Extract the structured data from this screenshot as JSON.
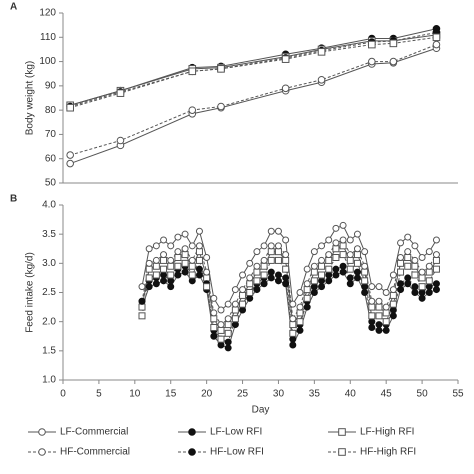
{
  "chart_data": [
    {
      "type": "line",
      "panel_label": "A",
      "y_label": "Body weight (kg)",
      "x": [
        1,
        8,
        18,
        22,
        31,
        36,
        43,
        46,
        52
      ],
      "xlim": [
        0,
        55
      ],
      "ylim": [
        50,
        120
      ],
      "yticks": [
        50,
        60,
        70,
        80,
        90,
        100,
        110,
        120
      ],
      "series": [
        {
          "name": "LF-Commercial",
          "color": "#555555",
          "marker": "circle-open",
          "dashed": false,
          "values": [
            58,
            65.5,
            78.5,
            81,
            88,
            91.5,
            99,
            99.5,
            105.5
          ]
        },
        {
          "name": "LF-Low RFI",
          "color": "#555555",
          "marker": "circle-filled",
          "dashed": false,
          "values": [
            82,
            88,
            97.5,
            98,
            103,
            105.5,
            109.5,
            109.5,
            113.5
          ]
        },
        {
          "name": "LF-High RFI",
          "color": "#555555",
          "marker": "square-open",
          "dashed": false,
          "values": [
            82,
            88,
            97,
            97.5,
            102,
            105,
            108.5,
            108.5,
            111
          ]
        },
        {
          "name": "HF-Commercial",
          "color": "#555555",
          "marker": "circle-open",
          "dashed": true,
          "values": [
            61.5,
            67.5,
            80,
            81.5,
            89,
            92.5,
            100,
            100,
            107
          ]
        },
        {
          "name": "HF-Low RFI",
          "color": "#555555",
          "marker": "circle-filled",
          "dashed": true,
          "values": [
            81.5,
            87.5,
            96,
            97,
            101.5,
            104.5,
            108,
            108.5,
            112
          ]
        },
        {
          "name": "HF-High RFI",
          "color": "#555555",
          "marker": "square-open",
          "dashed": true,
          "values": [
            81,
            87,
            96,
            97,
            101,
            104,
            107,
            107.5,
            110
          ]
        }
      ]
    },
    {
      "type": "line",
      "panel_label": "B",
      "y_label": "Feed intake (kg/d)",
      "x_label": "Day",
      "x": [
        11,
        12,
        13,
        14,
        15,
        16,
        17,
        18,
        19,
        20,
        21,
        22,
        23,
        24,
        25,
        26,
        27,
        28,
        29,
        30,
        31,
        32,
        33,
        34,
        35,
        36,
        37,
        38,
        39,
        40,
        41,
        42,
        43,
        44,
        45,
        46,
        47,
        48,
        49,
        50,
        51,
        52
      ],
      "xlim": [
        0,
        55
      ],
      "xticks": [
        0,
        5,
        10,
        15,
        20,
        25,
        30,
        35,
        40,
        45,
        50,
        55
      ],
      "ylim": [
        1,
        4
      ],
      "yticks": [
        {
          "value": 1,
          "label": "1.0"
        },
        1.5,
        {
          "value": 2,
          "label": "2.0"
        },
        2.5,
        {
          "value": 3,
          "label": "3.0"
        },
        3.5,
        {
          "value": 4,
          "label": "4.0"
        }
      ],
      "series": [
        {
          "color": "#555555",
          "marker": "circle-open",
          "dashed": false,
          "values": [
            2.6,
            3.25,
            3.3,
            3.4,
            3.3,
            3.45,
            3.5,
            3.3,
            3.55,
            3.1,
            2.4,
            2.2,
            2.3,
            2.55,
            2.8,
            3.0,
            3.2,
            3.3,
            3.55,
            3.55,
            3.4,
            2.3,
            2.5,
            2.9,
            3.2,
            3.3,
            3.4,
            3.6,
            3.65,
            3.4,
            3.5,
            3.2,
            2.6,
            2.6,
            2.5,
            2.8,
            3.35,
            3.45,
            3.3,
            3.1,
            3.2,
            3.4
          ]
        },
        {
          "color": "#555555",
          "marker": "circle-filled",
          "dashed": false,
          "values": [
            2.25,
            2.6,
            2.65,
            2.7,
            2.6,
            2.8,
            2.85,
            2.7,
            2.8,
            2.55,
            1.75,
            1.6,
            1.55,
            1.95,
            2.2,
            2.4,
            2.55,
            2.65,
            2.75,
            2.7,
            2.65,
            1.6,
            1.85,
            2.25,
            2.5,
            2.6,
            2.7,
            2.8,
            2.85,
            2.65,
            2.75,
            2.5,
            1.9,
            1.85,
            1.85,
            2.1,
            2.55,
            2.65,
            2.5,
            2.4,
            2.5,
            2.55
          ]
        },
        {
          "color": "#555555",
          "marker": "square-open",
          "dashed": false,
          "values": [
            2.25,
            2.9,
            2.95,
            3.05,
            2.95,
            3.1,
            3.15,
            2.95,
            3.2,
            2.75,
            2.05,
            1.85,
            1.95,
            2.2,
            2.45,
            2.65,
            2.85,
            2.95,
            3.2,
            3.2,
            3.05,
            1.95,
            2.15,
            2.55,
            2.85,
            2.95,
            3.05,
            3.25,
            3.3,
            3.05,
            3.15,
            2.85,
            2.25,
            2.25,
            2.15,
            2.45,
            3.0,
            3.1,
            2.95,
            2.75,
            2.85,
            3.05
          ]
        },
        {
          "color": "#555555",
          "marker": "circle-open",
          "dashed": true,
          "values": [
            2.35,
            3.0,
            3.05,
            3.15,
            3.05,
            3.2,
            3.25,
            3.05,
            3.3,
            2.85,
            2.15,
            1.95,
            2.05,
            2.3,
            2.55,
            2.75,
            2.95,
            3.05,
            3.3,
            3.3,
            3.15,
            2.05,
            2.25,
            2.65,
            2.95,
            3.05,
            3.15,
            3.35,
            3.4,
            3.15,
            3.25,
            2.95,
            2.35,
            2.35,
            2.25,
            2.55,
            3.1,
            3.2,
            3.05,
            2.85,
            2.95,
            3.15
          ]
        },
        {
          "color": "#555555",
          "marker": "circle-filled",
          "dashed": true,
          "values": [
            2.35,
            2.7,
            2.75,
            2.8,
            2.7,
            2.9,
            2.95,
            2.8,
            2.9,
            2.65,
            1.85,
            1.7,
            1.65,
            2.05,
            2.3,
            2.5,
            2.65,
            2.75,
            2.85,
            2.8,
            2.75,
            1.7,
            1.95,
            2.35,
            2.6,
            2.7,
            2.8,
            2.9,
            2.95,
            2.75,
            2.85,
            2.6,
            2.0,
            1.95,
            1.95,
            2.2,
            2.65,
            2.75,
            2.6,
            2.5,
            2.6,
            2.65
          ]
        },
        {
          "color": "#555555",
          "marker": "square-open",
          "dashed": true,
          "values": [
            2.1,
            2.75,
            2.8,
            2.9,
            2.8,
            2.95,
            3.0,
            2.8,
            3.05,
            2.6,
            1.9,
            1.7,
            1.8,
            2.05,
            2.3,
            2.5,
            2.7,
            2.8,
            3.05,
            3.05,
            2.9,
            1.8,
            2.0,
            2.4,
            2.7,
            2.8,
            2.9,
            3.1,
            3.15,
            2.9,
            3.0,
            2.7,
            2.1,
            2.1,
            2.0,
            2.3,
            2.85,
            2.95,
            2.8,
            2.6,
            2.7,
            2.9
          ]
        }
      ]
    }
  ]
}
